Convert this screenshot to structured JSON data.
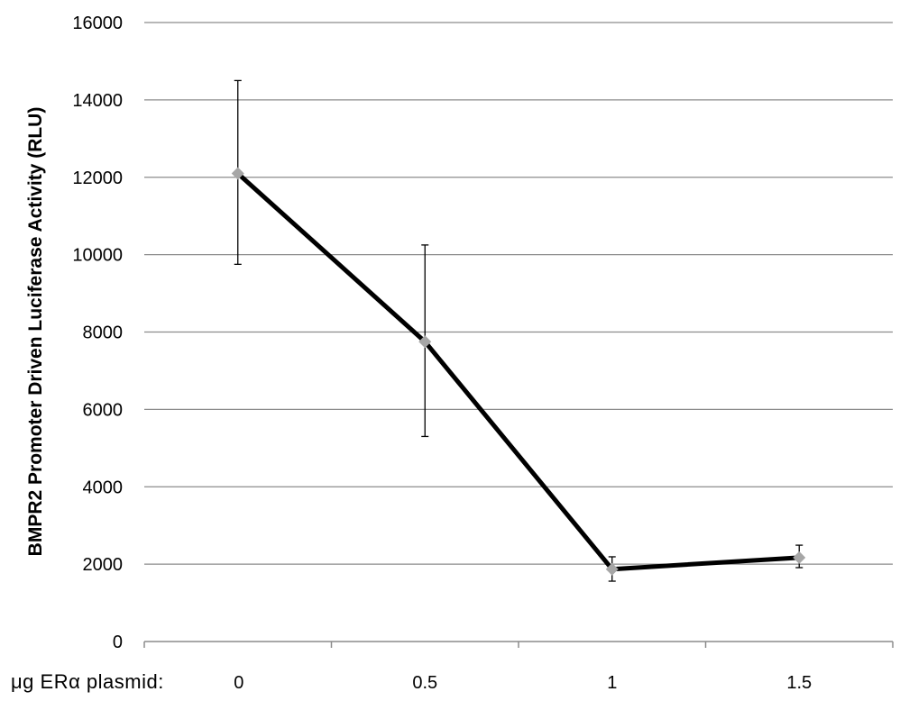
{
  "chart_data": {
    "type": "line",
    "title": "",
    "xlabel": "μg ERα plasmid:",
    "ylabel": "BMPR2 Promoter Driven Luciferase Activity (RLU)",
    "ylim": [
      0,
      16000
    ],
    "yticks": [
      "0",
      "2000",
      "4000",
      "6000",
      "8000",
      "10000",
      "12000",
      "14000",
      "16000"
    ],
    "categories": [
      "0",
      "0.5",
      "1",
      "1.5"
    ],
    "grid": true,
    "colors": {
      "line": "#000000",
      "marker": "#a6a6a6",
      "grid": "#8c8c8c"
    },
    "series": [
      {
        "values": [
          12100,
          7750,
          1870,
          2170
        ],
        "error_low": [
          9750,
          5300,
          1560,
          1910
        ],
        "error_high": [
          14500,
          10250,
          2190,
          2490
        ]
      }
    ]
  }
}
